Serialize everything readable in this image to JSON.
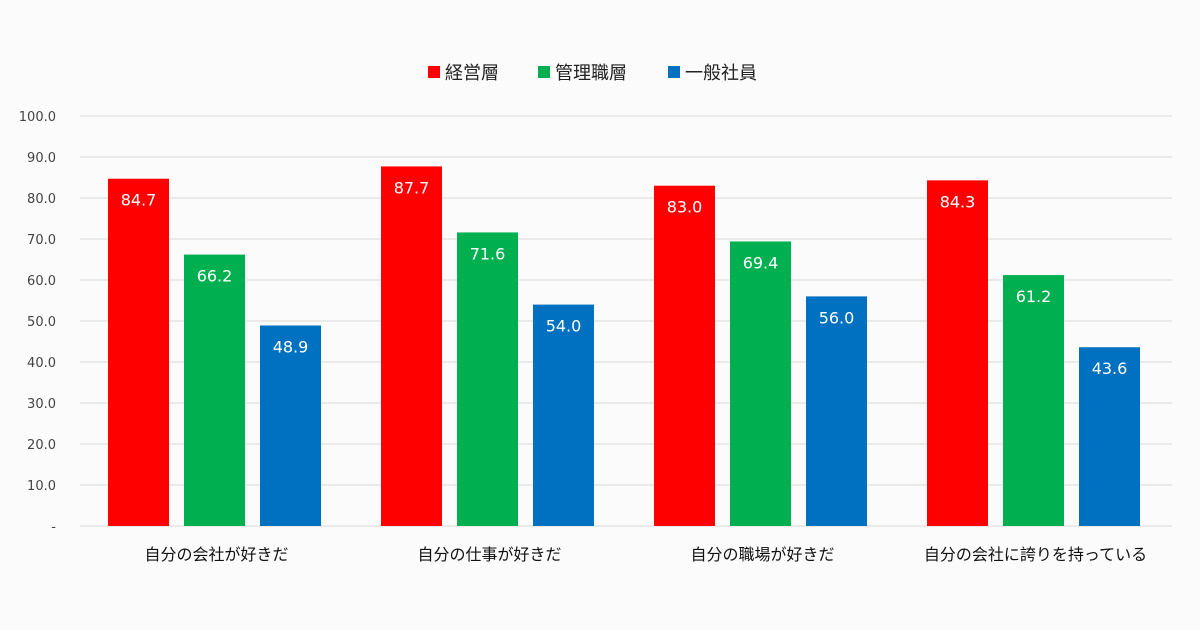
{
  "chart_data": {
    "type": "bar",
    "categories": [
      "自分の会社が好きだ",
      "自分の仕事が好きだ",
      "自分の職場が好きだ",
      "自分の会社に誇りを持っている"
    ],
    "series": [
      {
        "name": "経営層",
        "color": "#ff0000",
        "values": [
          84.7,
          87.7,
          83.0,
          84.3
        ]
      },
      {
        "name": "管理職層",
        "color": "#00b050",
        "values": [
          66.2,
          71.6,
          69.4,
          61.2
        ]
      },
      {
        "name": "一般社員",
        "color": "#0070c0",
        "values": [
          48.9,
          54.0,
          56.0,
          43.6
        ]
      }
    ],
    "ylim": [
      0,
      100
    ],
    "yticks": [
      "-",
      "10.0",
      "20.0",
      "30.0",
      "40.0",
      "50.0",
      "60.0",
      "70.0",
      "80.0",
      "90.0",
      "100.0"
    ],
    "grid": true,
    "legend": "top-center",
    "title": "",
    "xlabel": "",
    "ylabel": ""
  }
}
